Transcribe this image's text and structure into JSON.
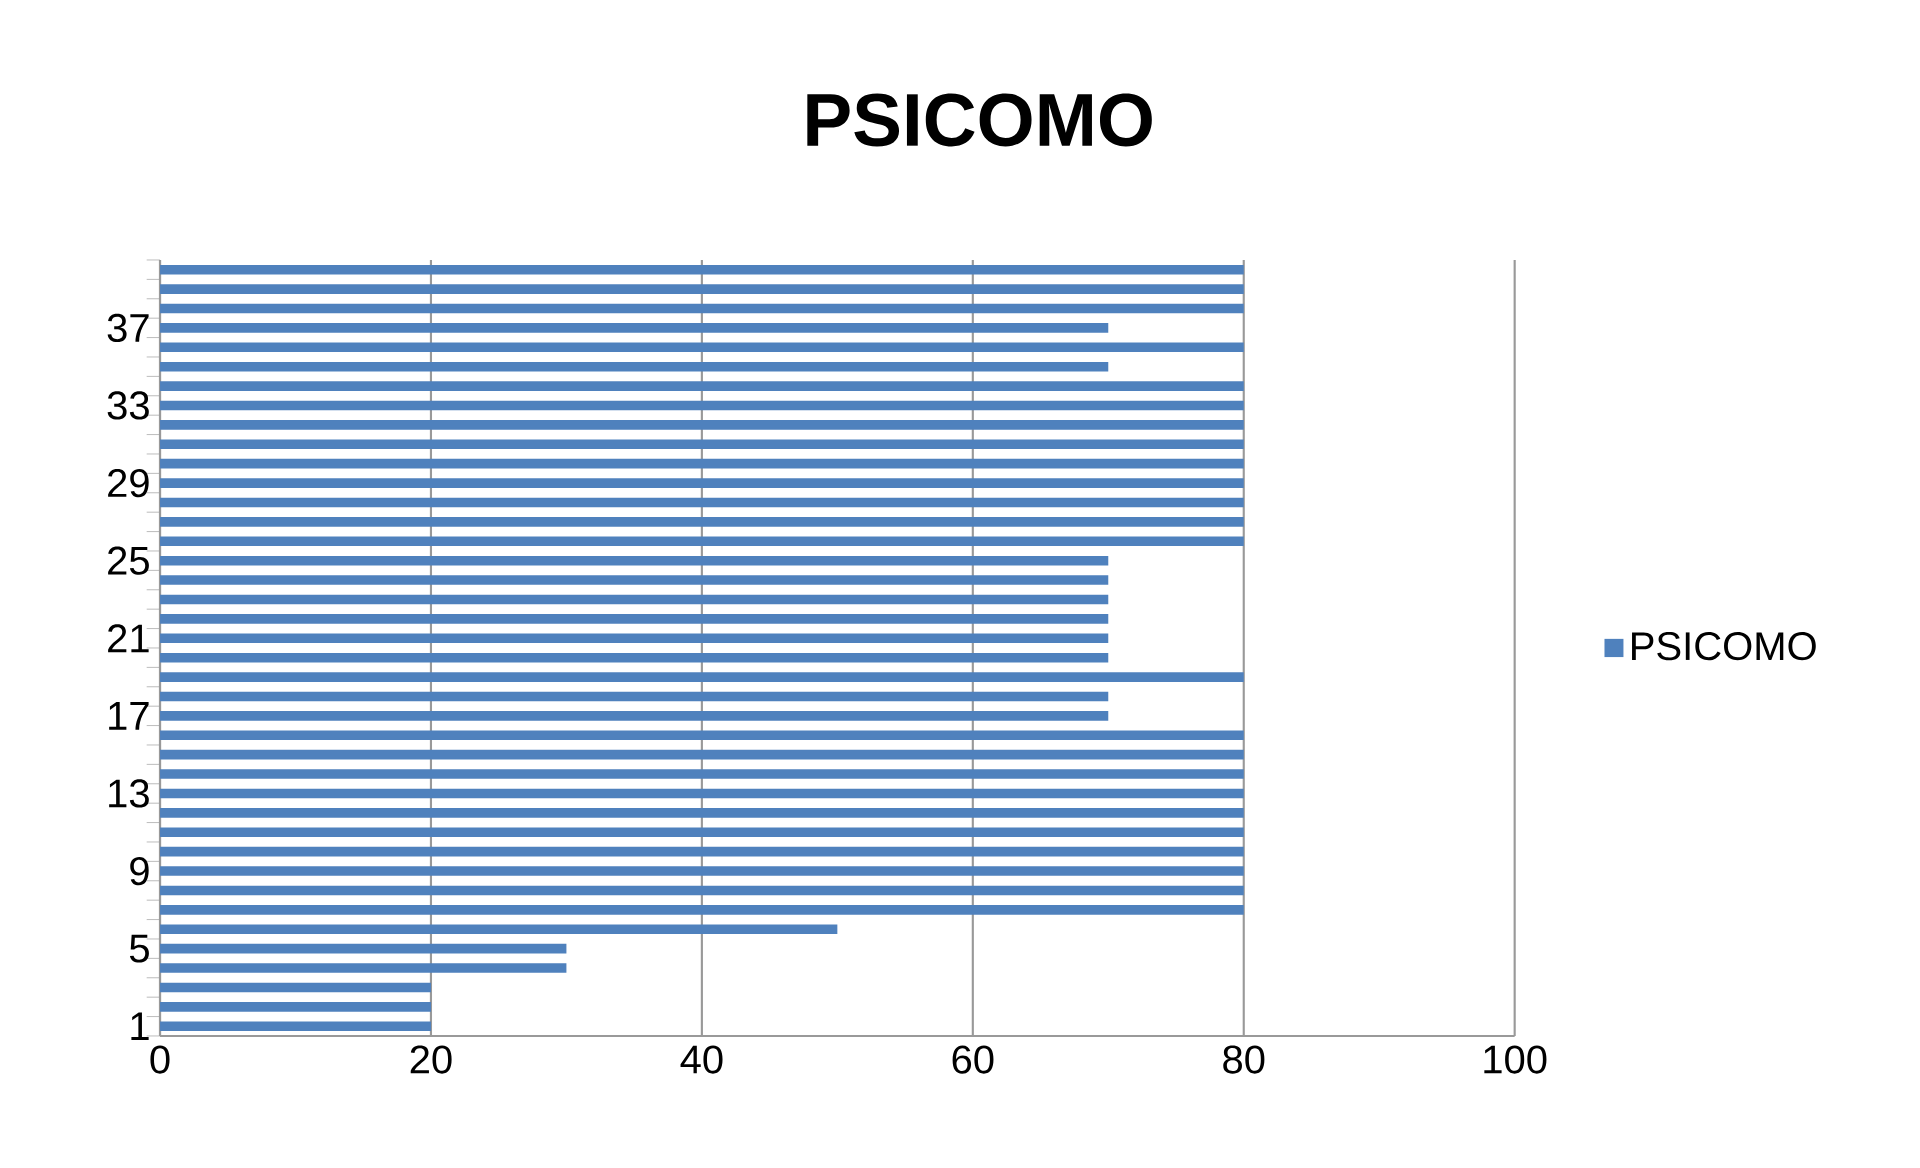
{
  "chart_data": {
    "type": "bar",
    "orientation": "horizontal",
    "title": "PSICOMO",
    "categories": [
      null,
      null,
      null,
      "37",
      null,
      null,
      null,
      "33",
      null,
      null,
      null,
      "29",
      null,
      null,
      null,
      "25",
      null,
      null,
      null,
      "21",
      null,
      null,
      null,
      "17",
      null,
      null,
      null,
      "13",
      null,
      null,
      null,
      "9",
      null,
      null,
      null,
      "5",
      null,
      null,
      null,
      "1"
    ],
    "series": [
      {
        "name": "PSICOMO",
        "color": "#4f81bd",
        "values": [
          80,
          80,
          80,
          70,
          80,
          70,
          80,
          80,
          80,
          80,
          80,
          80,
          80,
          80,
          80,
          70,
          70,
          70,
          70,
          70,
          70,
          80,
          70,
          70,
          80,
          80,
          80,
          80,
          80,
          80,
          80,
          80,
          80,
          80,
          50,
          30,
          30,
          20,
          20,
          20
        ]
      }
    ],
    "xlim": [
      0,
      100
    ],
    "xticks": [
      0,
      20,
      40,
      60,
      80,
      100
    ],
    "grid": "x",
    "legend": "right"
  }
}
